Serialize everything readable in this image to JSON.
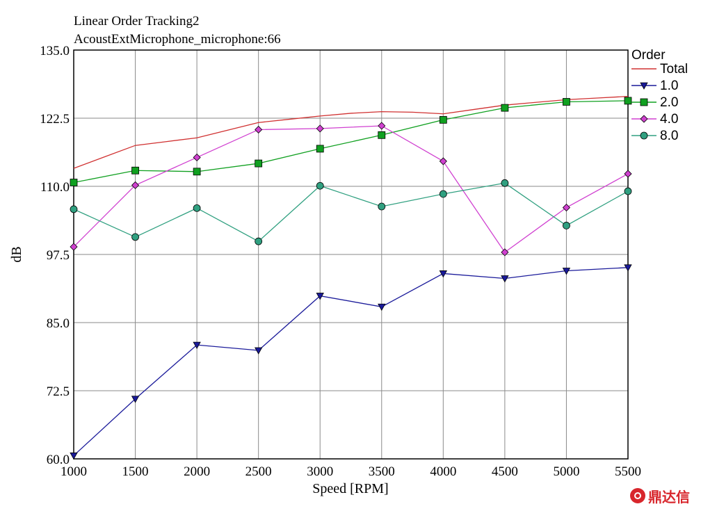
{
  "chart_data": {
    "type": "line",
    "title": "Linear Order Tracking2",
    "subtitle": "AcoustExtMicrophone_microphone:66",
    "xlabel": "Speed [RPM]",
    "ylabel": "dB",
    "xlim": [
      1000,
      5500
    ],
    "ylim": [
      60.0,
      135.0
    ],
    "x_ticks": [
      "1000",
      "1500",
      "2000",
      "2500",
      "3000",
      "3500",
      "4000",
      "4500",
      "5000",
      "5500"
    ],
    "y_ticks": [
      "60.0",
      "72.5",
      "85.0",
      "97.5",
      "110.0",
      "122.5",
      "135.0"
    ],
    "grid": true,
    "legend_title": "Order",
    "legend_position": "right",
    "x": [
      1000,
      1500,
      2000,
      2500,
      3000,
      3500,
      4000,
      4500,
      5000,
      5500
    ],
    "series": [
      {
        "name": "Total",
        "color": "#d03030",
        "marker": "none",
        "x": [
          1000,
          1250,
          1500,
          1750,
          2000,
          2250,
          2500,
          2750,
          3000,
          3250,
          3500,
          3750,
          4000,
          4250,
          4500,
          4750,
          5000,
          5250,
          5500
        ],
        "values": [
          113.3,
          115.4,
          117.5,
          118.2,
          118.9,
          120.3,
          121.7,
          122.3,
          122.9,
          123.4,
          123.7,
          123.6,
          123.3,
          124.1,
          124.9,
          125.4,
          125.9,
          126.2,
          126.5
        ]
      },
      {
        "name": "1.0",
        "color": "#1a1a9a",
        "marker": "triangle-down",
        "values": [
          60.6,
          71.0,
          80.9,
          79.9,
          89.9,
          87.9,
          94.0,
          93.1,
          94.5,
          95.1
        ]
      },
      {
        "name": "2.0",
        "color": "#10a020",
        "marker": "square",
        "values": [
          110.7,
          112.9,
          112.7,
          114.2,
          116.9,
          119.4,
          122.2,
          124.4,
          125.5,
          125.7
        ]
      },
      {
        "name": "4.0",
        "color": "#d040d0",
        "marker": "diamond",
        "values": [
          98.9,
          110.2,
          115.3,
          120.4,
          120.6,
          121.1,
          114.6,
          97.9,
          106.1,
          112.3
        ]
      },
      {
        "name": "8.0",
        "color": "#30a080",
        "marker": "circle",
        "values": [
          105.8,
          100.7,
          106.0,
          99.9,
          110.1,
          106.3,
          108.6,
          110.6,
          102.8,
          109.1
        ]
      }
    ]
  },
  "watermark": {
    "text": "鼎达信",
    "color": "#d8262c"
  }
}
